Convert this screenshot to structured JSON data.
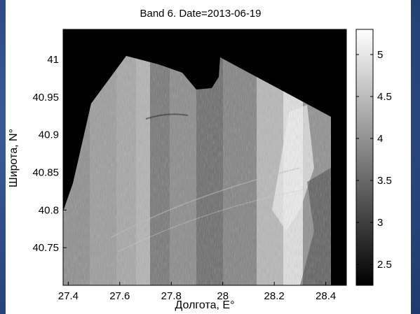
{
  "chart_data": {
    "type": "heatmap",
    "title": "Band 6. Date=2013-06-19",
    "xlabel": "Долгота, E°",
    "ylabel": "Широта, N°",
    "xlim": [
      27.38,
      28.48
    ],
    "ylim": [
      40.7,
      41.04
    ],
    "x_ticks": [
      27.4,
      27.6,
      27.8,
      28,
      28.2,
      28.4
    ],
    "x_tick_labels": [
      "27.4",
      "27.6",
      "27.8",
      "28",
      "28.2",
      "28.4"
    ],
    "y_ticks": [
      40.75,
      40.8,
      40.85,
      40.9,
      40.95,
      41
    ],
    "y_tick_labels": [
      "40.75",
      "40.8",
      "40.85",
      "40.9",
      "40.95",
      "41"
    ],
    "colorbar": {
      "colormap": "gray",
      "range": [
        2.25,
        5.3
      ],
      "ticks": [
        2.5,
        3,
        3.5,
        4,
        4.5,
        5
      ],
      "tick_labels": [
        "2.5",
        "3",
        "3.5",
        "4",
        "4.5",
        "5"
      ]
    },
    "colors": {
      "background": "#000000",
      "figure_bg": "#ffffff",
      "page_bg": "#2f4f86"
    }
  }
}
